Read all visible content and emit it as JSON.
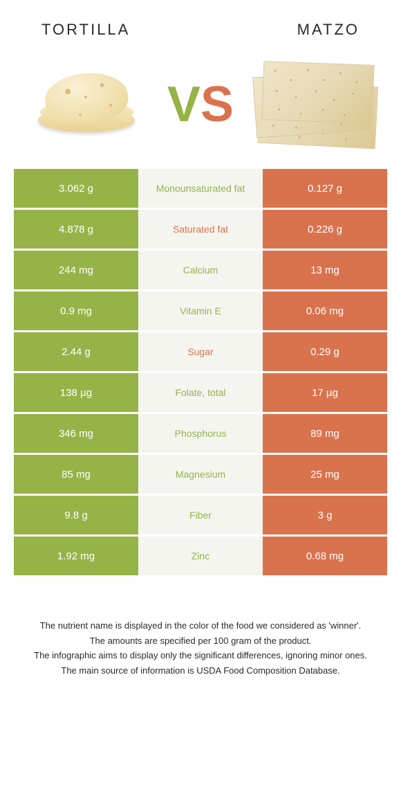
{
  "header": {
    "left_title": "Tortilla",
    "right_title": "Matzo"
  },
  "vs": {
    "v": "V",
    "s": "S"
  },
  "colors": {
    "left_bg": "#96b347",
    "right_bg": "#d9734e",
    "mid_bg": "#f5f5f0",
    "left_label": "#96b347",
    "right_label": "#d9734e"
  },
  "rows": [
    {
      "left": "3.062 g",
      "label": "Monounsaturated fat",
      "right": "0.127 g",
      "winner": "left"
    },
    {
      "left": "4.878 g",
      "label": "Saturated fat",
      "right": "0.226 g",
      "winner": "right"
    },
    {
      "left": "244 mg",
      "label": "Calcium",
      "right": "13 mg",
      "winner": "left"
    },
    {
      "left": "0.9 mg",
      "label": "Vitamin E",
      "right": "0.06 mg",
      "winner": "left"
    },
    {
      "left": "2.44 g",
      "label": "Sugar",
      "right": "0.29 g",
      "winner": "right"
    },
    {
      "left": "138 µg",
      "label": "Folate, total",
      "right": "17 µg",
      "winner": "left"
    },
    {
      "left": "346 mg",
      "label": "Phosphorus",
      "right": "89 mg",
      "winner": "left"
    },
    {
      "left": "85 mg",
      "label": "Magnesium",
      "right": "25 mg",
      "winner": "left"
    },
    {
      "left": "9.8 g",
      "label": "Fiber",
      "right": "3 g",
      "winner": "left"
    },
    {
      "left": "1.92 mg",
      "label": "Zinc",
      "right": "0.68 mg",
      "winner": "left"
    }
  ],
  "footer": {
    "line1": "The nutrient name is displayed in the color of the food we considered as 'winner'.",
    "line2": "The amounts are specified per 100 gram of the product.",
    "line3": "The infographic aims to display only the significant differences, ignoring minor ones.",
    "line4": "The main source of information is USDA Food Composition Database."
  }
}
